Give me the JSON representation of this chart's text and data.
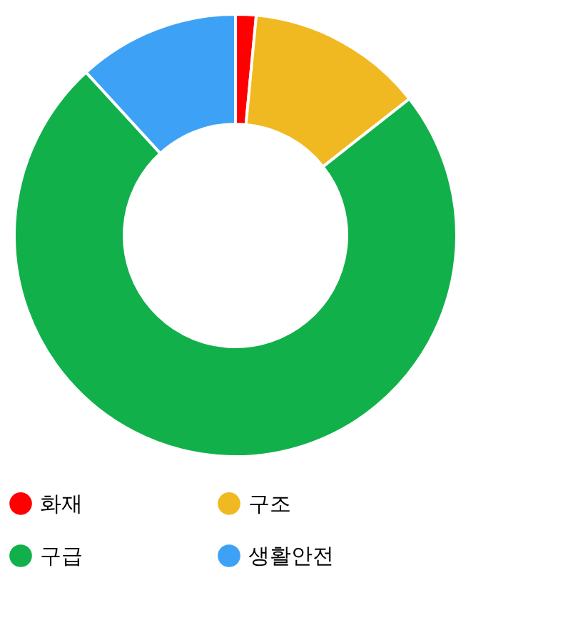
{
  "chart_data": {
    "type": "donut",
    "categories": [
      "화재",
      "구조",
      "구급",
      "생활안전"
    ],
    "values": [
      1.5,
      12.9,
      73.8,
      11.8
    ],
    "colors": [
      "#ff0000",
      "#f0b921",
      "#12b04b",
      "#3da2f5"
    ],
    "legend": "bottom"
  }
}
